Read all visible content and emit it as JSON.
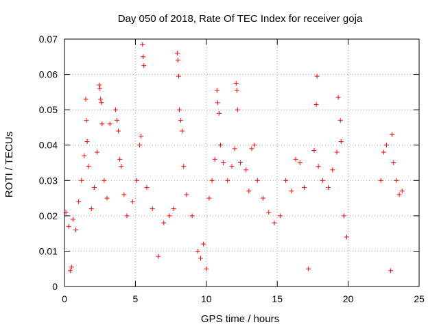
{
  "chart_data": {
    "type": "scatter",
    "title": "Day 050 of 2018, Rate Of TEC Index for receiver goja",
    "xlabel": "GPS time / hours",
    "ylabel": "ROTI / TECUs",
    "xlim": [
      0,
      25
    ],
    "ylim": [
      0,
      0.07
    ],
    "xticks": [
      0,
      5,
      10,
      15,
      20,
      25
    ],
    "xtick_labels": [
      "0",
      "5",
      "10",
      "15",
      "20",
      "25"
    ],
    "yticks": [
      0,
      0.01,
      0.02,
      0.03,
      0.04,
      0.05,
      0.06,
      0.07
    ],
    "ytick_labels": [
      "0",
      "0.01",
      "0.02",
      "0.03",
      "0.04",
      "0.05",
      "0.06",
      "0.07"
    ],
    "grid": true,
    "marker": "+",
    "marker_color": "#ff0000",
    "series": [
      {
        "name": "ROTI",
        "points": [
          [
            0.1,
            0.021
          ],
          [
            0.3,
            0.017
          ],
          [
            0.4,
            0.0045
          ],
          [
            0.5,
            0.0055
          ],
          [
            0.6,
            0.019
          ],
          [
            0.8,
            0.016
          ],
          [
            1.0,
            0.024
          ],
          [
            1.2,
            0.03
          ],
          [
            1.4,
            0.037
          ],
          [
            1.5,
            0.053
          ],
          [
            1.55,
            0.047
          ],
          [
            1.6,
            0.041
          ],
          [
            1.7,
            0.034
          ],
          [
            1.9,
            0.022
          ],
          [
            2.1,
            0.028
          ],
          [
            2.3,
            0.038
          ],
          [
            2.45,
            0.057
          ],
          [
            2.5,
            0.056
          ],
          [
            2.55,
            0.053
          ],
          [
            2.6,
            0.052
          ],
          [
            2.65,
            0.046
          ],
          [
            2.8,
            0.03
          ],
          [
            3.0,
            0.025
          ],
          [
            3.2,
            0.046
          ],
          [
            3.6,
            0.05
          ],
          [
            3.7,
            0.047
          ],
          [
            3.8,
            0.044
          ],
          [
            3.9,
            0.036
          ],
          [
            4.0,
            0.034
          ],
          [
            4.2,
            0.026
          ],
          [
            4.4,
            0.02
          ],
          [
            4.8,
            0.024
          ],
          [
            5.1,
            0.03
          ],
          [
            5.3,
            0.04
          ],
          [
            5.4,
            0.0425
          ],
          [
            5.5,
            0.0685
          ],
          [
            5.55,
            0.065
          ],
          [
            5.6,
            0.0625
          ],
          [
            5.8,
            0.028
          ],
          [
            6.2,
            0.022
          ],
          [
            6.6,
            0.0085
          ],
          [
            7.0,
            0.018
          ],
          [
            7.4,
            0.02
          ],
          [
            7.7,
            0.022
          ],
          [
            7.95,
            0.066
          ],
          [
            8.0,
            0.064
          ],
          [
            8.05,
            0.0595
          ],
          [
            8.1,
            0.05
          ],
          [
            8.2,
            0.047
          ],
          [
            8.3,
            0.044
          ],
          [
            8.4,
            0.034
          ],
          [
            8.6,
            0.026
          ],
          [
            9.0,
            0.02
          ],
          [
            9.4,
            0.01
          ],
          [
            9.6,
            0.008
          ],
          [
            9.8,
            0.012
          ],
          [
            10.0,
            0.005
          ],
          [
            10.2,
            0.025
          ],
          [
            10.4,
            0.03
          ],
          [
            10.6,
            0.036
          ],
          [
            10.75,
            0.0555
          ],
          [
            10.8,
            0.052
          ],
          [
            10.9,
            0.049
          ],
          [
            11.0,
            0.04
          ],
          [
            11.2,
            0.035
          ],
          [
            11.5,
            0.03
          ],
          [
            11.8,
            0.034
          ],
          [
            12.0,
            0.039
          ],
          [
            12.1,
            0.0575
          ],
          [
            12.15,
            0.0555
          ],
          [
            12.2,
            0.05
          ],
          [
            12.4,
            0.035
          ],
          [
            12.8,
            0.033
          ],
          [
            13.0,
            0.027
          ],
          [
            13.2,
            0.039
          ],
          [
            13.4,
            0.04
          ],
          [
            13.6,
            0.03
          ],
          [
            14.0,
            0.025
          ],
          [
            14.4,
            0.021
          ],
          [
            14.8,
            0.018
          ],
          [
            15.2,
            0.02
          ],
          [
            15.6,
            0.03
          ],
          [
            16.0,
            0.027
          ],
          [
            16.3,
            0.036
          ],
          [
            16.6,
            0.035
          ],
          [
            16.9,
            0.028
          ],
          [
            17.2,
            0.005
          ],
          [
            17.6,
            0.0385
          ],
          [
            17.75,
            0.0515
          ],
          [
            17.8,
            0.0595
          ],
          [
            17.9,
            0.034
          ],
          [
            18.2,
            0.03
          ],
          [
            18.6,
            0.028
          ],
          [
            18.9,
            0.033
          ],
          [
            19.2,
            0.038
          ],
          [
            19.3,
            0.0535
          ],
          [
            19.45,
            0.047
          ],
          [
            19.5,
            0.041
          ],
          [
            19.7,
            0.02
          ],
          [
            19.9,
            0.014
          ],
          [
            22.3,
            0.03
          ],
          [
            22.5,
            0.038
          ],
          [
            22.7,
            0.04
          ],
          [
            23.0,
            0.0045
          ],
          [
            23.1,
            0.043
          ],
          [
            23.2,
            0.035
          ],
          [
            23.4,
            0.03
          ],
          [
            23.6,
            0.026
          ],
          [
            23.8,
            0.027
          ]
        ]
      }
    ]
  }
}
